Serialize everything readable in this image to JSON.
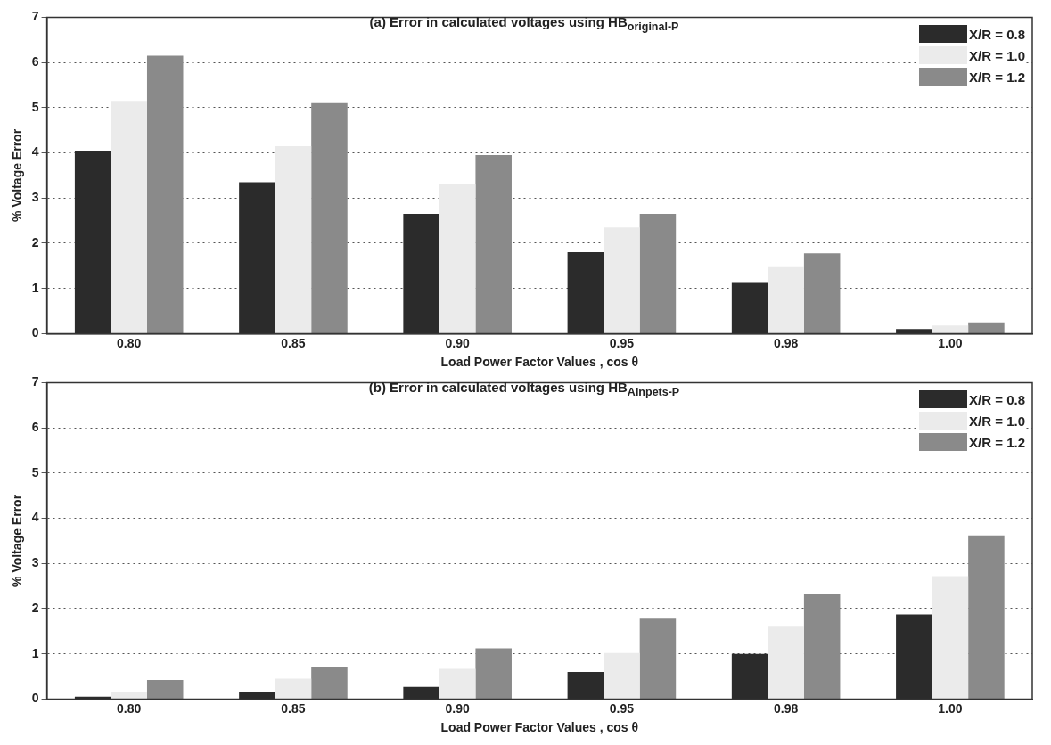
{
  "chart_data": [
    {
      "type": "bar",
      "title": "(a) Error in calculated voltages using HB$_{original-P}$",
      "xlabel": "Load Power Factor Values , cos θ",
      "ylabel": "% Voltage Error",
      "categories": [
        "0.80",
        "0.85",
        "0.90",
        "0.95",
        "0.98",
        "1.00"
      ],
      "series": [
        {
          "name": "X/R = 0.8",
          "color": "#2b2b2b",
          "values": [
            4.05,
            3.35,
            2.65,
            1.8,
            1.12,
            0.1
          ]
        },
        {
          "name": "X/R = 1.0",
          "color": "#ebebeb",
          "values": [
            5.15,
            4.15,
            3.3,
            2.35,
            1.47,
            0.18
          ]
        },
        {
          "name": "X/R = 1.2",
          "color": "#8a8a8a",
          "values": [
            6.15,
            5.1,
            3.95,
            2.65,
            1.78,
            0.25
          ]
        }
      ],
      "ylim": [
        0,
        7
      ],
      "yticks": [
        0,
        1,
        2,
        3,
        4,
        5,
        6,
        7
      ],
      "grid": "y",
      "legend": "top right"
    },
    {
      "type": "bar",
      "title": "(b) Error in calculated voltages using HB$_{Alnpets-P}$",
      "xlabel": "Load Power Factor Values , cos θ",
      "ylabel": "% Voltage Error",
      "categories": [
        "0.80",
        "0.85",
        "0.90",
        "0.95",
        "0.98",
        "1.00"
      ],
      "series": [
        {
          "name": "X/R = 0.8",
          "color": "#2b2b2b",
          "values": [
            0.05,
            0.15,
            0.27,
            0.6,
            1.0,
            1.87
          ]
        },
        {
          "name": "X/R = 1.0",
          "color": "#ebebeb",
          "values": [
            0.15,
            0.45,
            0.67,
            1.02,
            1.6,
            2.72
          ]
        },
        {
          "name": "X/R = 1.2",
          "color": "#8a8a8a",
          "values": [
            0.42,
            0.7,
            1.12,
            1.78,
            2.32,
            3.62
          ]
        }
      ],
      "ylim": [
        0,
        7
      ],
      "yticks": [
        0,
        1,
        2,
        3,
        4,
        5,
        6,
        7
      ],
      "grid": "y",
      "legend": "top right"
    }
  ]
}
